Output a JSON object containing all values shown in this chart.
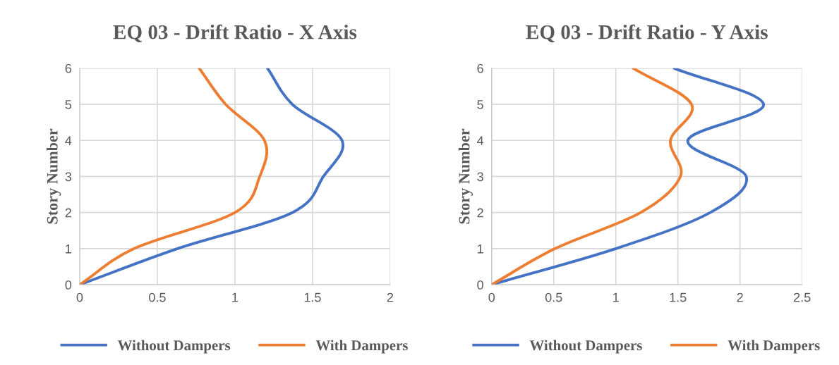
{
  "chart_data": [
    {
      "type": "line",
      "title": "EQ 03 - Drift Ratio - X Axis",
      "ylabel": "Story Number",
      "series": [
        {
          "name": "Without Dampers",
          "color": "#4472c4",
          "x": [
            0,
            0.63,
            1.37,
            1.57,
            1.69,
            1.37,
            1.21
          ],
          "values": [
            0,
            1,
            2,
            3,
            4,
            5,
            6
          ]
        },
        {
          "name": "With Dampers",
          "color": "#ed7d31",
          "x": [
            0,
            0.35,
            1.0,
            1.16,
            1.19,
            0.94,
            0.77
          ],
          "values": [
            0,
            1,
            2,
            3,
            4,
            5,
            6
          ]
        }
      ],
      "xlim": [
        0,
        2
      ],
      "xticks": [
        0,
        0.5,
        1,
        1.5,
        2
      ],
      "ylim": [
        0,
        6
      ],
      "yticks": [
        0,
        1,
        2,
        3,
        4,
        5,
        6
      ],
      "grid": true,
      "legend": "bottom"
    },
    {
      "type": "line",
      "title": "EQ 03 - Drift Ratio - Y Axis",
      "ylabel": "Story Number",
      "series": [
        {
          "name": "Without Dampers",
          "color": "#4472c4",
          "x": [
            0,
            1.0,
            1.76,
            2.05,
            1.58,
            2.19,
            1.47
          ],
          "values": [
            0,
            1,
            2,
            3,
            4,
            5,
            6
          ]
        },
        {
          "name": "With Dampers",
          "color": "#ed7d31",
          "x": [
            0,
            0.51,
            1.2,
            1.52,
            1.44,
            1.61,
            1.14
          ],
          "values": [
            0,
            1,
            2,
            3,
            4,
            5,
            6
          ]
        }
      ],
      "xlim": [
        0,
        2.5
      ],
      "xticks": [
        0,
        0.5,
        1,
        1.5,
        2,
        2.5
      ],
      "ylim": [
        0,
        6
      ],
      "yticks": [
        0,
        1,
        2,
        3,
        4,
        5,
        6
      ],
      "grid": true,
      "legend": "bottom"
    }
  ]
}
